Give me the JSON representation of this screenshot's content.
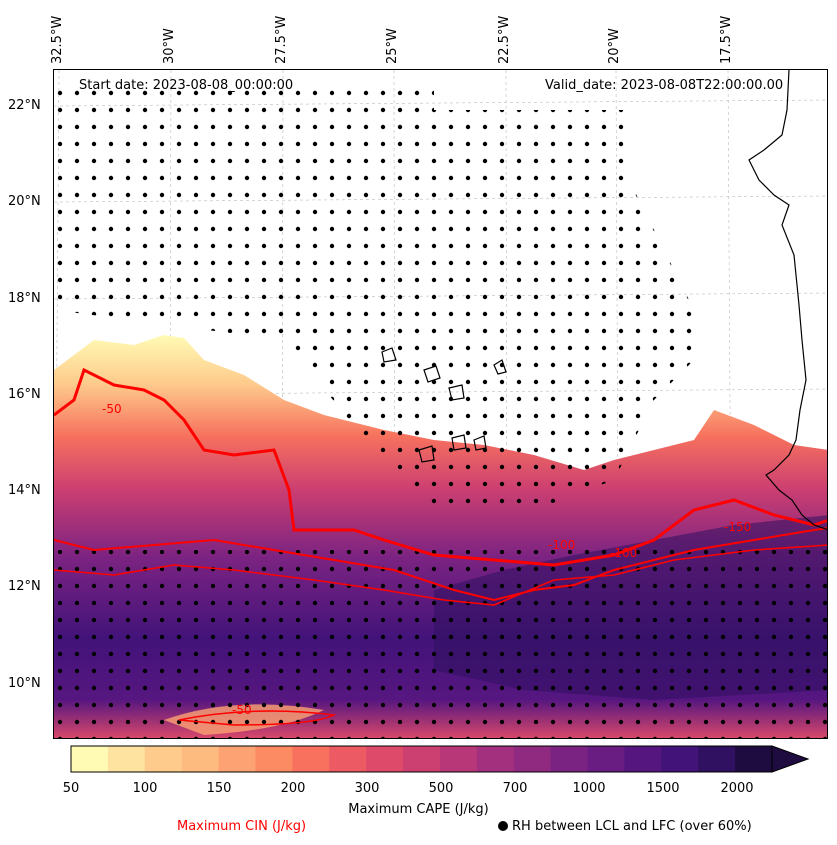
{
  "map": {
    "start_date": "Start date: 2023-08-08_00:00:00",
    "valid_date": "Valid_date: 2023-08-08T22:00:00.00",
    "lon_labels": [
      "32.5°W",
      "30°W",
      "27.5°W",
      "25°W",
      "22.5°W",
      "20°W",
      "17.5°W"
    ],
    "lat_labels": [
      "22°N",
      "20°N",
      "18°N",
      "16°N",
      "14°N",
      "12°N",
      "10°N"
    ],
    "cin_contour_labels": [
      "-50",
      "-50",
      "-100",
      "-100",
      "-150"
    ],
    "colors": {
      "cin_contour": "#ff0000",
      "coastline": "#000000",
      "gridline": "#bbbbbb"
    }
  },
  "colorbar": {
    "label": "Maximum CAPE (J/kg)",
    "tick_labels": [
      "50",
      "100",
      "150",
      "200",
      "300",
      "500",
      "700",
      "1000",
      "1500",
      "2000"
    ],
    "colors": [
      "#fffbb5",
      "#fee2a0",
      "#fecb8c",
      "#febb7f",
      "#fda272",
      "#fc8a62",
      "#f7715e",
      "#ec5a63",
      "#de4a69",
      "#cc3f71",
      "#b73779",
      "#a3307e",
      "#8f2a80",
      "#7b2382",
      "#691d82",
      "#561680",
      "#421379",
      "#301060",
      "#1e0c41"
    ],
    "extend_color": "#1e0c41"
  },
  "legend": {
    "cin_label": "Maximum CIN (J/kg)",
    "rh_label": "RH between LCL and LFC (over 60%)"
  }
}
